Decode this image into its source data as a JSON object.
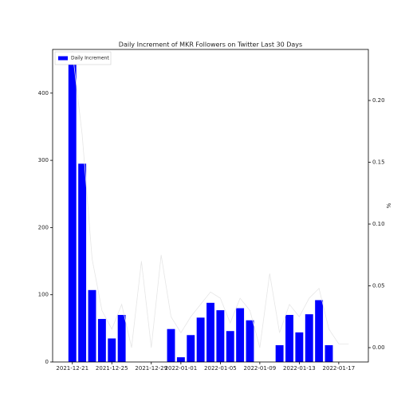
{
  "chart_data": {
    "type": "bar",
    "title": "Daily Increment of MKR Followers on Twitter Last 30 Days",
    "y2_label": "%",
    "x": [
      "2021-12-21",
      "2021-12-22",
      "2021-12-23",
      "2021-12-24",
      "2021-12-25",
      "2021-12-26",
      "2021-12-27",
      "2021-12-28",
      "2021-12-29",
      "2021-12-30",
      "2021-12-31",
      "2022-01-01",
      "2022-01-02",
      "2022-01-03",
      "2022-01-04",
      "2022-01-05",
      "2022-01-06",
      "2022-01-07",
      "2022-01-08",
      "2022-01-09",
      "2022-01-10",
      "2022-01-11",
      "2022-01-12",
      "2022-01-13",
      "2022-01-14",
      "2022-01-15",
      "2022-01-16",
      "2022-01-17",
      "2022-01-18"
    ],
    "series": [
      {
        "name": "Daily Increment",
        "color": "#0000ff",
        "values": [
          443,
          295,
          107,
          64,
          35,
          70,
          0,
          0,
          0,
          0,
          49,
          7,
          40,
          66,
          88,
          77,
          46,
          80,
          62,
          0,
          0,
          25,
          70,
          44,
          71,
          92,
          25,
          0,
          0
        ]
      },
      {
        "type": "line",
        "axis": "y2",
        "color": "#e6e6e6",
        "values": [
          0.24,
          0.172,
          0.072,
          0.03,
          0.015,
          0.035,
          0.0,
          0.07,
          0.0,
          0.075,
          0.025,
          0.012,
          0.025,
          0.035,
          0.045,
          0.04,
          0.02,
          0.04,
          0.03,
          0.0,
          0.06,
          0.012,
          0.035,
          0.025,
          0.04,
          0.048,
          0.015,
          0.003,
          0.003
        ]
      }
    ],
    "xlim": [
      "2021-12-19",
      "2022-01-20"
    ],
    "xticks": [
      "2021-12-21",
      "2021-12-25",
      "2021-12-29",
      "2022-01-01",
      "2022-01-05",
      "2022-01-09",
      "2022-01-13",
      "2022-01-17"
    ],
    "ylim": [
      0,
      465
    ],
    "yticks": [
      0,
      100,
      200,
      300,
      400
    ],
    "y2lim": [
      -0.0116,
      0.2413
    ],
    "y2ticks": [
      {
        "value": 0,
        "label": "0.00"
      },
      {
        "value": 0.05,
        "label": "0.05"
      },
      {
        "value": 0.1,
        "label": "0.10"
      },
      {
        "value": 0.15,
        "label": "0.15"
      },
      {
        "value": 0.2,
        "label": "0.20"
      }
    ],
    "legend": "upper left"
  }
}
